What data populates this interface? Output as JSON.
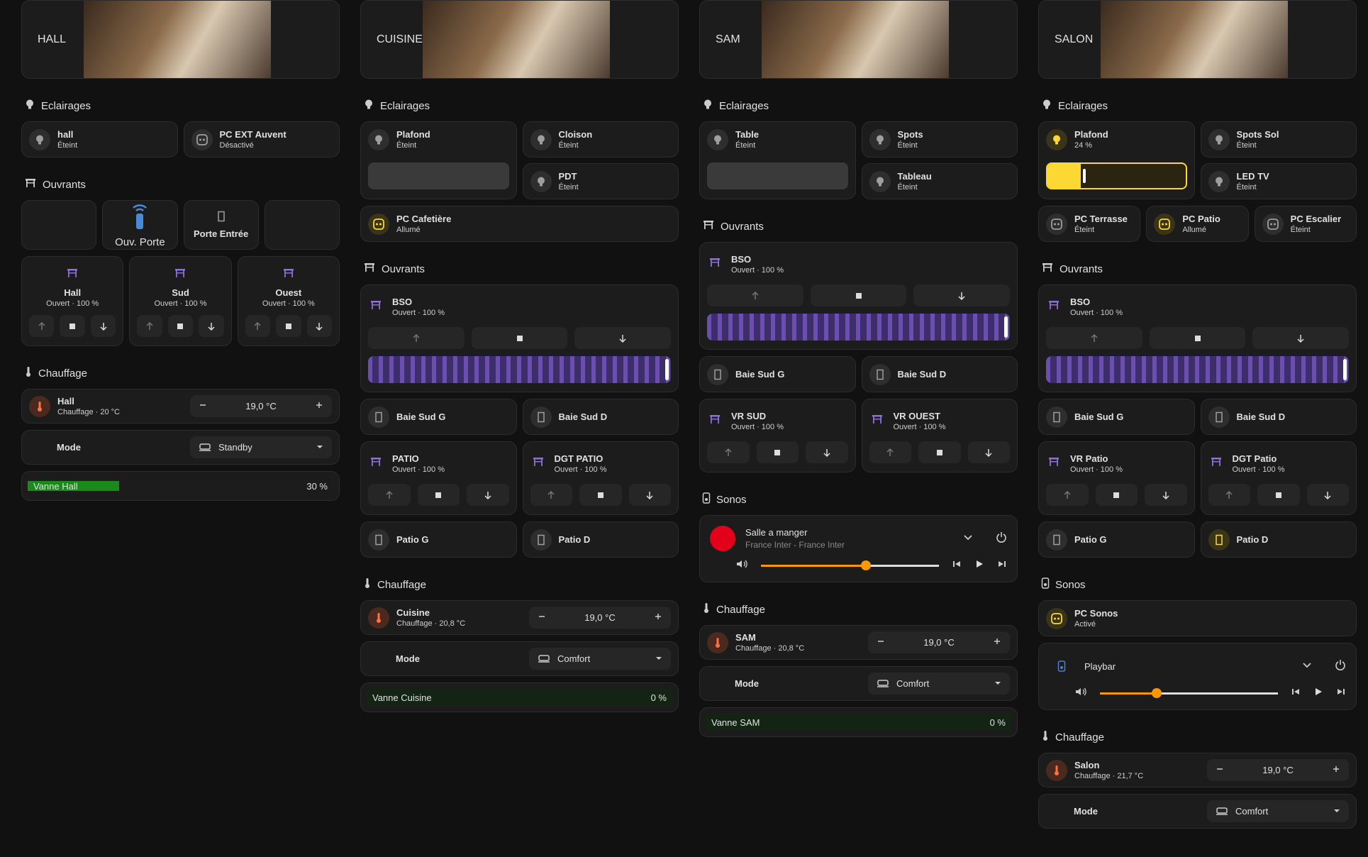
{
  "columns": [
    {
      "header": {
        "title": "HALL"
      },
      "sections": [
        {
          "title": "Eclairages",
          "icon": "bulb",
          "rows": [
            {
              "tiles": [
                {
                  "name": "hall",
                  "state": "Éteint",
                  "icon": "bulb"
                },
                {
                  "name": "PC EXT Auvent",
                  "state": "Désactivé",
                  "icon": "plug"
                }
              ]
            }
          ]
        },
        {
          "title": "Ouvrants",
          "rows": [
            {
              "buttons": [
                null,
                {
                  "label": "Ouv. Porte",
                  "icon": "remote"
                },
                {
                  "label": "Porte Entrée",
                  "icon": "door"
                },
                null
              ]
            },
            {
              "covers": [
                {
                  "name": "Hall",
                  "state": "Ouvert · 100 %"
                },
                {
                  "name": "Sud",
                  "state": "Ouvert · 100 %"
                },
                {
                  "name": "Ouest",
                  "state": "Ouvert · 100 %"
                }
              ]
            }
          ]
        },
        {
          "title": "Chauffage",
          "icon": "thermo",
          "rows": [
            {
              "thermostat": {
                "name": "Hall",
                "state": "Chauffage · 20 °C",
                "target": "19,0 °C"
              }
            },
            {
              "mode": {
                "label": "Mode",
                "value": "Standby"
              }
            },
            {
              "valve": {
                "name": "Vanne Hall",
                "value": 30,
                "label": "30 %"
              }
            }
          ]
        }
      ]
    },
    {
      "header": {
        "title": "CUISINE"
      },
      "sections": [
        {
          "title": "Eclairages",
          "icon": "bulb",
          "rows": [
            {
              "tiles": [
                {
                  "name": "Plafond",
                  "state": "Éteint",
                  "icon": "bulb",
                  "brightness": 0
                },
                {
                  "name": "Cloison",
                  "state": "Éteint",
                  "icon": "bulb"
                },
                {
                  "name": "PDT",
                  "state": "Éteint",
                  "icon": "bulb"
                }
              ]
            },
            {
              "tiles": [
                {
                  "name": "PC Cafetière",
                  "state": "Allumé",
                  "icon": "plug",
                  "icon_color": "#fdd835"
                }
              ]
            }
          ]
        },
        {
          "title": "Ouvrants",
          "icon": "cover",
          "rows": [
            {
              "covers": [
                {
                  "name": "BSO",
                  "state": "Ouvert · 100 %",
                  "position": 100
                }
              ]
            },
            {
              "tiles": [
                {
                  "name": "Baie Sud G",
                  "icon": "door"
                },
                {
                  "name": "Baie Sud D",
                  "icon": "door"
                }
              ]
            },
            {
              "covers": [
                {
                  "name": "PATIO",
                  "state": "Ouvert · 100 %"
                },
                {
                  "name": "DGT PATIO",
                  "state": "Ouvert · 100 %"
                }
              ]
            },
            {
              "tiles": [
                {
                  "name": "Patio G",
                  "icon": "door"
                },
                {
                  "name": "Patio D",
                  "icon": "door"
                }
              ]
            }
          ]
        },
        {
          "title": "Chauffage",
          "icon": "thermo",
          "rows": [
            {
              "thermostat": {
                "name": "Cuisine",
                "state": "Chauffage · 20,8 °C",
                "target": "19,0 °C"
              }
            },
            {
              "mode": {
                "label": "Mode",
                "value": "Comfort"
              }
            },
            {
              "valve": {
                "name": "Vanne Cuisine",
                "value": 0,
                "label": "0 %"
              }
            }
          ]
        }
      ]
    },
    {
      "header": {
        "title": "SAM"
      },
      "sections": [
        {
          "title": "Eclairages",
          "icon": "bulb",
          "rows": [
            {
              "tiles": [
                {
                  "name": "Table",
                  "state": "Éteint",
                  "icon": "bulb",
                  "brightness": 0
                },
                {
                  "name": "Spots",
                  "state": "Éteint",
                  "icon": "bulb"
                },
                {
                  "name": "Tableau",
                  "state": "Éteint",
                  "icon": "bulb"
                }
              ]
            }
          ]
        },
        {
          "title": "Ouvrants",
          "icon": "cover",
          "rows": [
            {
              "covers": [
                {
                  "name": "BSO",
                  "state": "Ouvert · 100 %",
                  "position": 100
                }
              ]
            },
            {
              "tiles": [
                {
                  "name": "Baie Sud G",
                  "icon": "door"
                },
                {
                  "name": "Baie Sud D",
                  "icon": "door"
                }
              ]
            },
            {
              "covers": [
                {
                  "name": "VR SUD",
                  "state": "Ouvert · 100 %"
                },
                {
                  "name": "VR OUEST",
                  "state": "Ouvert · 100 %"
                }
              ]
            }
          ]
        },
        {
          "title": "Sonos",
          "icon": "speaker",
          "rows": [
            {
              "media": {
                "name": "Salle a manger",
                "source": "France Inter - France Inter",
                "volume": 59,
                "logo_color": "#e2001a"
              }
            }
          ]
        },
        {
          "title": "Chauffage",
          "icon": "thermo",
          "rows": [
            {
              "thermostat": {
                "name": "SAM",
                "state": "Chauffage · 20,8 °C",
                "target": "19,0 °C"
              }
            },
            {
              "mode": {
                "label": "Mode",
                "value": "Comfort"
              }
            },
            {
              "valve": {
                "name": "Vanne SAM",
                "value": 0,
                "label": "0 %"
              }
            }
          ]
        }
      ]
    },
    {
      "header": {
        "title": "SALON"
      },
      "sections": [
        {
          "title": "Eclairages",
          "icon": "bulb",
          "rows": [
            {
              "tiles": [
                {
                  "name": "Plafond",
                  "icon": "bulb",
                  "icon_color": "#fdd835",
                  "brightness": {
                    "value": 24,
                    "label": "24 %"
                  }
                },
                {
                  "name": "Spots Sol",
                  "state": "Éteint",
                  "icon": "bulb"
                },
                {
                  "name": "LED TV",
                  "state": "Éteint",
                  "icon": "bulb"
                }
              ]
            },
            {
              "tiles": [
                {
                  "name": "PC Terrasse",
                  "state": "Éteint",
                  "icon": "plug"
                },
                {
                  "name": "PC Patio",
                  "state": "Allumé",
                  "icon": "plug",
                  "icon_color": "#fdd835"
                },
                {
                  "name": "PC Escalier",
                  "state": "Éteint",
                  "icon": "plug"
                }
              ]
            }
          ]
        },
        {
          "title": "Ouvrants",
          "icon": "cover",
          "rows": [
            {
              "covers": [
                {
                  "name": "BSO",
                  "state": "Ouvert · 100 %",
                  "position": 100
                }
              ]
            },
            {
              "tiles": [
                {
                  "name": "Baie Sud G",
                  "icon": "door"
                },
                {
                  "name": "Baie Sud D",
                  "icon": "door"
                }
              ]
            },
            {
              "covers": [
                {
                  "name": "VR Patio",
                  "state": "Ouvert · 100 %"
                },
                {
                  "name": "DGT Patio",
                  "state": "Ouvert · 100 %"
                }
              ]
            },
            {
              "tiles": [
                {
                  "name": "Patio G",
                  "icon": "door"
                },
                {
                  "name": "Patio D",
                  "icon": "door",
                  "icon_color": "#fdd835"
                }
              ]
            }
          ]
        },
        {
          "title": "Sonos",
          "icon": "speaker",
          "rows": [
            {
              "tiles": [
                {
                  "name": "PC Sonos",
                  "state": "Activé",
                  "icon": "plug",
                  "icon_color": "#fdd835"
                }
              ]
            },
            {
              "media": {
                "name": "Playbar",
                "volume": 32,
                "logo_color": "#4a7fd4"
              }
            }
          ]
        },
        {
          "title": "Chauffage",
          "icon": "thermo",
          "rows": [
            {
              "thermostat": {
                "name": "Salon",
                "state": "Chauffage · 21,7 °C",
                "target": "19,0 °C"
              }
            },
            {
              "mode": {
                "label": "Mode",
                "value": "Comfort"
              }
            }
          ]
        }
      ]
    }
  ]
}
